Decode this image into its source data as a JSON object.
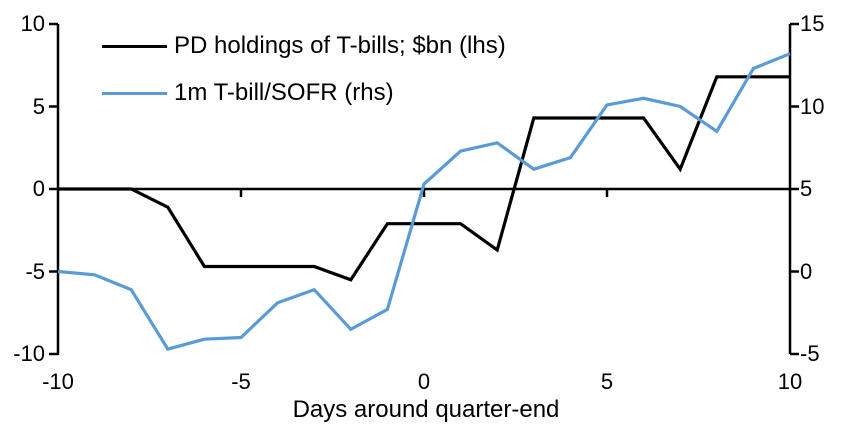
{
  "chart_data": {
    "type": "line",
    "title": "",
    "xlabel": "Days around quarter-end",
    "x": [
      -10,
      -9,
      -8,
      -7,
      -6,
      -5,
      -4,
      -3,
      -2,
      -1,
      0,
      1,
      2,
      3,
      4,
      5,
      6,
      7,
      8,
      9,
      10
    ],
    "series": [
      {
        "name": "PD holdings of T-bills; $bn (lhs)",
        "axis": "left",
        "color": "#000000",
        "values": [
          0,
          0,
          0,
          -1.1,
          -4.7,
          -4.7,
          -4.7,
          -4.7,
          -5.5,
          -2.1,
          -2.1,
          -2.1,
          -3.7,
          4.3,
          4.3,
          4.3,
          4.3,
          1.2,
          6.8,
          6.8,
          6.8
        ]
      },
      {
        "name": "1m T-bill/SOFR (rhs)",
        "axis": "right",
        "color": "#5B9BD5",
        "values": [
          0,
          -0.2,
          -1.1,
          -4.7,
          -4.1,
          -4.0,
          -1.9,
          -1.1,
          -3.5,
          -2.3,
          5.3,
          7.3,
          7.8,
          6.2,
          6.9,
          10.1,
          10.5,
          10.0,
          8.5,
          12.3,
          13.2
        ]
      }
    ],
    "axes": {
      "left": {
        "min": -10,
        "max": 10,
        "ticks": [
          10,
          5,
          0,
          -5,
          -10
        ]
      },
      "right": {
        "min": -5,
        "max": 15,
        "ticks": [
          15,
          10,
          5,
          0,
          -5
        ]
      },
      "x": {
        "min": -10,
        "max": 10,
        "ticks": [
          -10,
          -5,
          0,
          5,
          10
        ],
        "tick_marks": [
          -5,
          0,
          5
        ]
      }
    },
    "zero_line": true,
    "grid": false,
    "legend_position": "top-left",
    "background": "#ffffff",
    "axis_color": "#000000"
  }
}
